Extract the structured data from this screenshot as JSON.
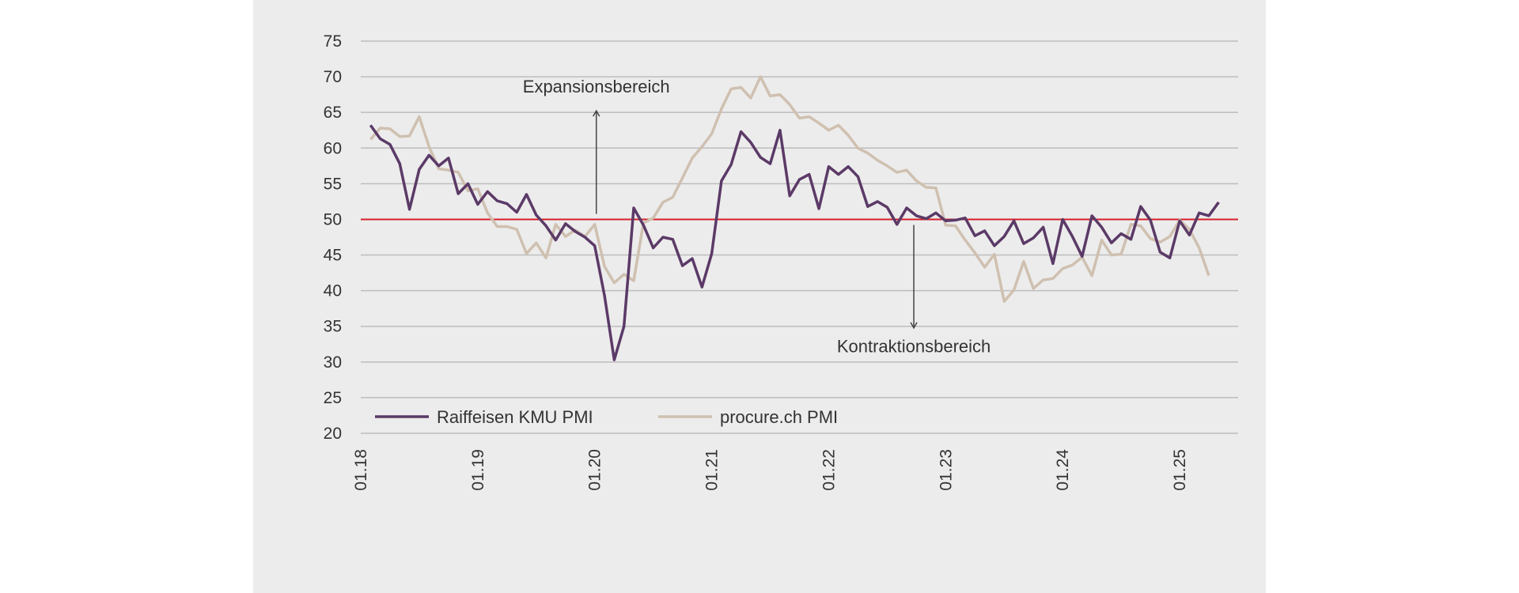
{
  "chart_data": {
    "type": "line",
    "title": "",
    "xlabel": "",
    "ylabel": "",
    "ylim": [
      20,
      75
    ],
    "yticks": [
      75,
      70,
      65,
      60,
      55,
      50,
      45,
      40,
      35,
      30,
      25,
      20
    ],
    "xticks": [
      "01.18",
      "01.19",
      "01.20",
      "01.21",
      "01.22",
      "01.23",
      "01.24",
      "01.25"
    ],
    "x_start": "01.18",
    "x_end": "07.25",
    "reference_line": {
      "value": 50,
      "color": "#d6202a"
    },
    "grid": true,
    "legend_position": "bottom-left",
    "annotations": {
      "expansion": {
        "label": "Expansionsbereich",
        "x": "01.20",
        "arrow": "up",
        "from": 50,
        "to": 65
      },
      "contraction": {
        "label": "Kontraktionsbereich",
        "x": "09.22",
        "arrow": "down",
        "from": 50,
        "to": 35
      }
    },
    "series": [
      {
        "name": "Raiffeisen KMU PMI",
        "color": "#5b3a67",
        "x_start": "02.18",
        "values": [
          63.2,
          61.3,
          60.5,
          57.8,
          51.4,
          57.0,
          59.0,
          57.5,
          58.6,
          53.6,
          55.0,
          52.1,
          53.9,
          52.6,
          52.2,
          51.0,
          53.5,
          50.6,
          49.1,
          47.1,
          49.4,
          48.3,
          47.5,
          46.3,
          39.3,
          30.3,
          35.0,
          51.6,
          49.2,
          46.0,
          47.5,
          47.2,
          43.5,
          44.5,
          40.5,
          45.2,
          55.4,
          57.7,
          62.3,
          60.8,
          58.7,
          57.8,
          62.5,
          53.3,
          55.6,
          56.3,
          51.5,
          57.4,
          56.3,
          57.4,
          56.0,
          51.8,
          52.5,
          51.7,
          49.3,
          51.6,
          50.5,
          50.1,
          50.9,
          49.8,
          49.9,
          50.2,
          47.7,
          48.4,
          46.3,
          47.6,
          49.8,
          46.6,
          47.4,
          48.9,
          43.8,
          50.0,
          47.6,
          44.8,
          50.5,
          48.9,
          46.7,
          48.0,
          47.2,
          51.8,
          49.9,
          45.4,
          44.6,
          49.8,
          47.8,
          50.9,
          50.5,
          52.4
        ]
      },
      {
        "name": "procure.ch PMI",
        "color": "#cfc0b0",
        "x_start": "02.18",
        "values": [
          61.2,
          62.8,
          62.7,
          61.6,
          61.7,
          64.4,
          60.2,
          57.1,
          56.9,
          56.6,
          54.0,
          54.3,
          50.9,
          49.0,
          49.0,
          48.6,
          45.2,
          46.7,
          44.6,
          49.3,
          47.6,
          48.5,
          47.6,
          49.3,
          43.4,
          41.1,
          42.3,
          41.4,
          49.5,
          50.2,
          52.4,
          53.1,
          55.8,
          58.6,
          60.2,
          62.0,
          65.5,
          68.3,
          68.5,
          67.0,
          70.0,
          67.3,
          67.5,
          66.1,
          64.2,
          64.4,
          63.5,
          62.5,
          63.2,
          61.8,
          60.0,
          59.3,
          58.3,
          57.5,
          56.6,
          56.9,
          55.4,
          54.5,
          54.4,
          49.2,
          49.1,
          47.1,
          45.3,
          43.3,
          45.1,
          38.5,
          40.1,
          44.1,
          40.3,
          41.5,
          41.7,
          43.1,
          43.6,
          44.7,
          42.1,
          47.1,
          45.0,
          45.1,
          49.3,
          49.1,
          47.3,
          46.8,
          47.6,
          49.9,
          48.6,
          46.0,
          42.1
        ]
      }
    ]
  }
}
